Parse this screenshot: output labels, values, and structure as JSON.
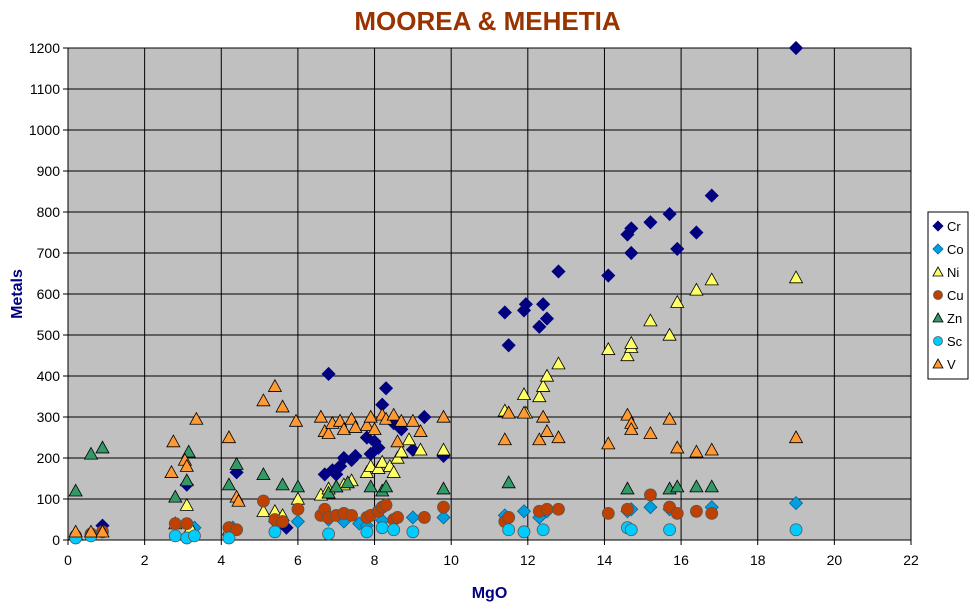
{
  "chart_data": {
    "type": "scatter",
    "title": "MOOREA & MEHETIA",
    "xlabel": "MgO",
    "ylabel": "Metals",
    "xlim": [
      0,
      22
    ],
    "ylim": [
      0,
      1200
    ],
    "xticks": [
      0,
      2,
      4,
      6,
      8,
      10,
      12,
      14,
      16,
      18,
      20,
      22
    ],
    "yticks": [
      0,
      100,
      200,
      300,
      400,
      500,
      600,
      700,
      800,
      900,
      1000,
      1100,
      1200
    ],
    "grid": true,
    "plot_background": "#c0c0c0",
    "legend_position": "right",
    "series": [
      {
        "name": "Cr",
        "marker": "diamond",
        "color": "#000080",
        "points": [
          [
            0.9,
            35
          ],
          [
            3.1,
            135
          ],
          [
            4.4,
            165
          ],
          [
            5.7,
            30
          ],
          [
            6.7,
            160
          ],
          [
            6.8,
            405
          ],
          [
            6.9,
            170
          ],
          [
            7.0,
            160
          ],
          [
            7.1,
            180
          ],
          [
            7.2,
            200
          ],
          [
            7.4,
            195
          ],
          [
            7.5,
            205
          ],
          [
            7.8,
            250
          ],
          [
            7.9,
            210
          ],
          [
            8.0,
            240
          ],
          [
            8.1,
            225
          ],
          [
            8.2,
            330
          ],
          [
            8.3,
            370
          ],
          [
            8.5,
            285
          ],
          [
            8.7,
            270
          ],
          [
            9.0,
            220
          ],
          [
            9.3,
            300
          ],
          [
            9.8,
            205
          ],
          [
            11.4,
            555
          ],
          [
            11.5,
            475
          ],
          [
            11.9,
            560
          ],
          [
            11.95,
            575
          ],
          [
            12.3,
            520
          ],
          [
            12.4,
            575
          ],
          [
            12.5,
            540
          ],
          [
            12.8,
            655
          ],
          [
            14.1,
            645
          ],
          [
            14.6,
            745
          ],
          [
            14.7,
            760
          ],
          [
            14.7,
            700
          ],
          [
            15.2,
            775
          ],
          [
            15.7,
            795
          ],
          [
            15.9,
            710
          ],
          [
            16.4,
            750
          ],
          [
            16.8,
            840
          ],
          [
            19.0,
            1200
          ]
        ]
      },
      {
        "name": "Co",
        "marker": "diamond",
        "color": "#00a0e0",
        "points": [
          [
            0.2,
            8
          ],
          [
            3.3,
            30
          ],
          [
            4.3,
            30
          ],
          [
            5.4,
            45
          ],
          [
            6.0,
            45
          ],
          [
            6.8,
            50
          ],
          [
            7.2,
            45
          ],
          [
            7.6,
            40
          ],
          [
            7.8,
            35
          ],
          [
            8.2,
            48
          ],
          [
            8.5,
            45
          ],
          [
            9.0,
            55
          ],
          [
            9.8,
            55
          ],
          [
            11.4,
            60
          ],
          [
            11.9,
            70
          ],
          [
            12.3,
            55
          ],
          [
            12.5,
            70
          ],
          [
            14.6,
            70
          ],
          [
            14.7,
            75
          ],
          [
            15.2,
            80
          ],
          [
            15.7,
            75
          ],
          [
            16.8,
            80
          ],
          [
            19.0,
            90
          ]
        ]
      },
      {
        "name": "Ni",
        "marker": "triangle",
        "color": "#ffff66",
        "points": [
          [
            0.2,
            15
          ],
          [
            2.8,
            40
          ],
          [
            3.1,
            85
          ],
          [
            3.2,
            30
          ],
          [
            4.2,
            25
          ],
          [
            5.1,
            70
          ],
          [
            5.4,
            70
          ],
          [
            5.6,
            60
          ],
          [
            6.0,
            100
          ],
          [
            6.6,
            110
          ],
          [
            6.8,
            125
          ],
          [
            7.0,
            130
          ],
          [
            7.2,
            135
          ],
          [
            7.4,
            145
          ],
          [
            7.8,
            165
          ],
          [
            7.9,
            180
          ],
          [
            8.1,
            175
          ],
          [
            8.2,
            190
          ],
          [
            8.4,
            180
          ],
          [
            8.5,
            165
          ],
          [
            8.6,
            200
          ],
          [
            8.7,
            215
          ],
          [
            8.9,
            245
          ],
          [
            9.2,
            220
          ],
          [
            9.8,
            220
          ],
          [
            11.4,
            315
          ],
          [
            11.5,
            310
          ],
          [
            11.9,
            355
          ],
          [
            11.95,
            310
          ],
          [
            12.3,
            350
          ],
          [
            12.4,
            375
          ],
          [
            12.5,
            400
          ],
          [
            12.8,
            430
          ],
          [
            14.1,
            465
          ],
          [
            14.6,
            450
          ],
          [
            14.7,
            470
          ],
          [
            14.7,
            480
          ],
          [
            15.2,
            535
          ],
          [
            15.7,
            500
          ],
          [
            15.9,
            580
          ],
          [
            16.4,
            610
          ],
          [
            16.8,
            635
          ],
          [
            19.0,
            640
          ]
        ]
      },
      {
        "name": "Cu",
        "marker": "circle",
        "color": "#c04000",
        "points": [
          [
            0.2,
            10
          ],
          [
            0.6,
            15
          ],
          [
            0.9,
            20
          ],
          [
            2.8,
            40
          ],
          [
            3.1,
            40
          ],
          [
            4.2,
            30
          ],
          [
            4.4,
            25
          ],
          [
            5.1,
            95
          ],
          [
            5.4,
            50
          ],
          [
            5.6,
            45
          ],
          [
            6.0,
            75
          ],
          [
            6.6,
            60
          ],
          [
            6.7,
            75
          ],
          [
            6.8,
            55
          ],
          [
            7.0,
            60
          ],
          [
            7.2,
            65
          ],
          [
            7.4,
            60
          ],
          [
            7.8,
            55
          ],
          [
            7.9,
            60
          ],
          [
            8.1,
            70
          ],
          [
            8.2,
            80
          ],
          [
            8.3,
            85
          ],
          [
            8.5,
            50
          ],
          [
            8.6,
            55
          ],
          [
            9.3,
            55
          ],
          [
            9.8,
            80
          ],
          [
            11.4,
            45
          ],
          [
            11.5,
            55
          ],
          [
            12.3,
            70
          ],
          [
            12.5,
            75
          ],
          [
            12.8,
            75
          ],
          [
            14.1,
            65
          ],
          [
            14.6,
            75
          ],
          [
            15.2,
            110
          ],
          [
            15.7,
            80
          ],
          [
            15.9,
            65
          ],
          [
            16.4,
            70
          ],
          [
            16.8,
            65
          ]
        ]
      },
      {
        "name": "Zn",
        "marker": "triangle",
        "color": "#339966",
        "points": [
          [
            0.2,
            120
          ],
          [
            0.6,
            210
          ],
          [
            0.9,
            225
          ],
          [
            2.8,
            105
          ],
          [
            3.1,
            145
          ],
          [
            3.15,
            215
          ],
          [
            4.2,
            135
          ],
          [
            4.4,
            185
          ],
          [
            5.1,
            160
          ],
          [
            5.6,
            135
          ],
          [
            6.0,
            130
          ],
          [
            6.8,
            115
          ],
          [
            7.0,
            130
          ],
          [
            7.3,
            140
          ],
          [
            7.9,
            130
          ],
          [
            8.2,
            120
          ],
          [
            8.3,
            130
          ],
          [
            9.8,
            125
          ],
          [
            11.5,
            140
          ],
          [
            14.6,
            125
          ],
          [
            15.7,
            125
          ],
          [
            15.9,
            130
          ],
          [
            16.4,
            130
          ],
          [
            16.8,
            130
          ]
        ]
      },
      {
        "name": "Sc",
        "marker": "circle",
        "color": "#00ccff",
        "points": [
          [
            0.2,
            5
          ],
          [
            0.6,
            10
          ],
          [
            2.8,
            10
          ],
          [
            3.1,
            5
          ],
          [
            3.3,
            10
          ],
          [
            4.2,
            5
          ],
          [
            5.4,
            20
          ],
          [
            6.8,
            15
          ],
          [
            7.8,
            20
          ],
          [
            8.2,
            30
          ],
          [
            8.5,
            25
          ],
          [
            9.0,
            20
          ],
          [
            11.5,
            25
          ],
          [
            11.9,
            20
          ],
          [
            12.4,
            25
          ],
          [
            14.6,
            30
          ],
          [
            14.7,
            25
          ],
          [
            15.7,
            25
          ],
          [
            19.0,
            25
          ]
        ]
      },
      {
        "name": "V",
        "marker": "triangle",
        "color": "#ff9933",
        "points": [
          [
            0.2,
            20
          ],
          [
            0.6,
            20
          ],
          [
            0.9,
            20
          ],
          [
            2.7,
            165
          ],
          [
            2.75,
            240
          ],
          [
            3.05,
            195
          ],
          [
            3.1,
            180
          ],
          [
            3.35,
            295
          ],
          [
            4.2,
            250
          ],
          [
            4.4,
            105
          ],
          [
            4.45,
            95
          ],
          [
            5.1,
            340
          ],
          [
            5.4,
            375
          ],
          [
            5.6,
            325
          ],
          [
            5.95,
            290
          ],
          [
            6.6,
            300
          ],
          [
            6.7,
            265
          ],
          [
            6.8,
            260
          ],
          [
            6.9,
            285
          ],
          [
            7.1,
            290
          ],
          [
            7.2,
            270
          ],
          [
            7.4,
            295
          ],
          [
            7.5,
            275
          ],
          [
            7.8,
            280
          ],
          [
            7.9,
            300
          ],
          [
            8.0,
            270
          ],
          [
            8.2,
            305
          ],
          [
            8.3,
            295
          ],
          [
            8.5,
            305
          ],
          [
            8.6,
            240
          ],
          [
            8.7,
            290
          ],
          [
            9.0,
            290
          ],
          [
            9.2,
            265
          ],
          [
            9.8,
            300
          ],
          [
            11.4,
            245
          ],
          [
            11.5,
            310
          ],
          [
            11.9,
            310
          ],
          [
            12.3,
            245
          ],
          [
            12.4,
            300
          ],
          [
            12.5,
            265
          ],
          [
            12.8,
            250
          ],
          [
            14.1,
            235
          ],
          [
            14.6,
            305
          ],
          [
            14.7,
            285
          ],
          [
            14.7,
            270
          ],
          [
            15.2,
            260
          ],
          [
            15.7,
            295
          ],
          [
            15.9,
            225
          ],
          [
            16.4,
            215
          ],
          [
            16.8,
            220
          ],
          [
            19.0,
            250
          ]
        ]
      }
    ]
  }
}
